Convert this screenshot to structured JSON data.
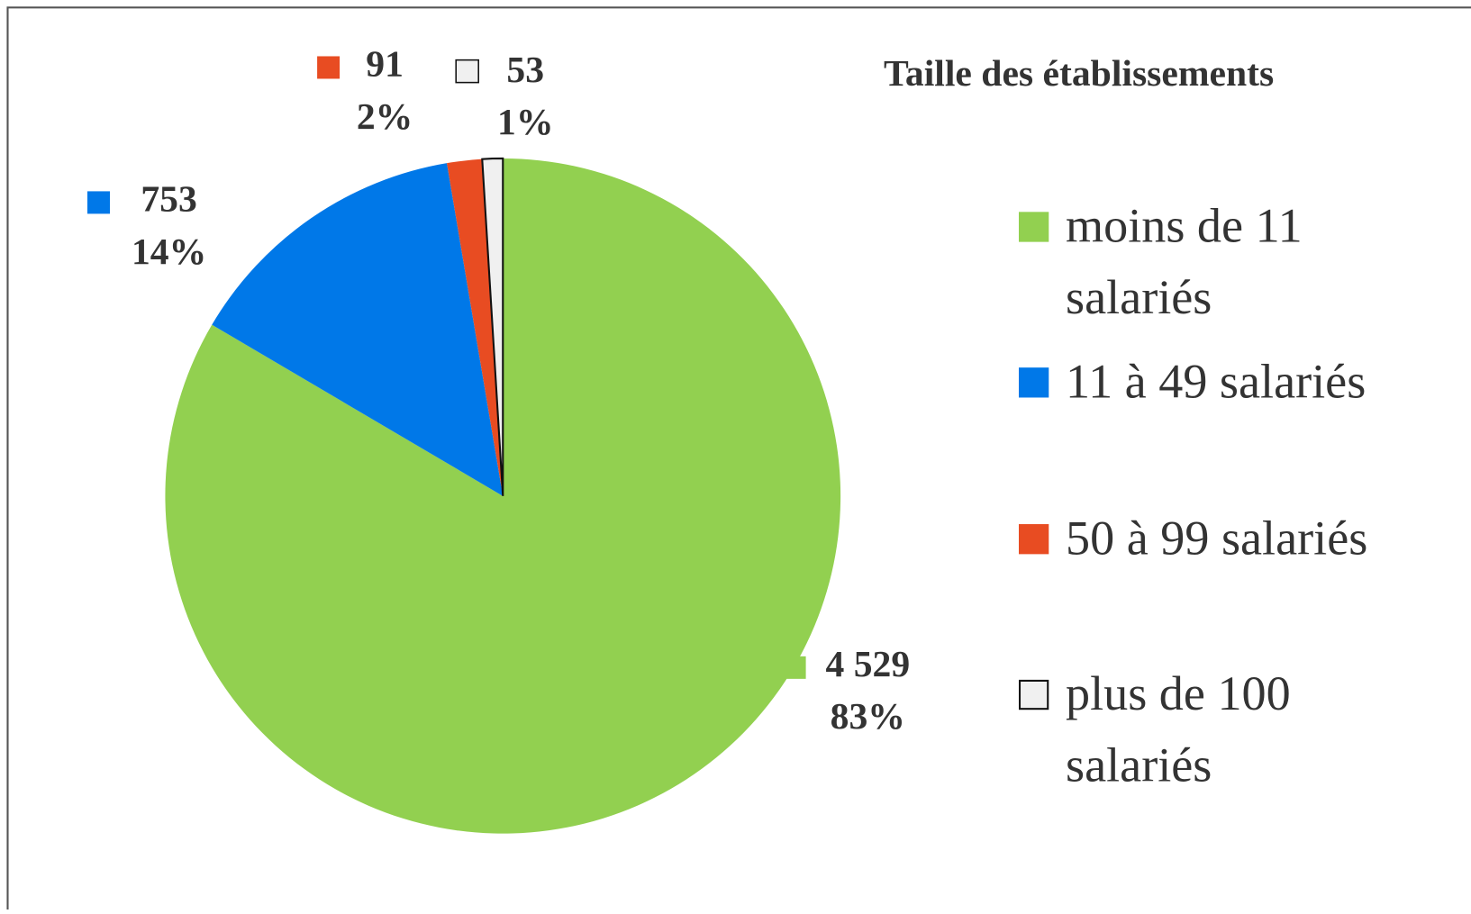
{
  "chart_data": {
    "type": "pie",
    "title": "Taille des établissements",
    "categories": [
      "moins de 11 salariés",
      "11 à 49 salariés",
      "50 à 99 salariés",
      "plus de 100 salariés"
    ],
    "values": [
      4529,
      753,
      91,
      53
    ],
    "value_labels": [
      "4 529",
      "753",
      "91",
      "53"
    ],
    "percent_labels": [
      "83%",
      "14%",
      "2%",
      "1%"
    ],
    "colors": [
      "#92d050",
      "#0078e8",
      "#e84c22",
      "#f0f0f0"
    ],
    "legend": "right"
  }
}
